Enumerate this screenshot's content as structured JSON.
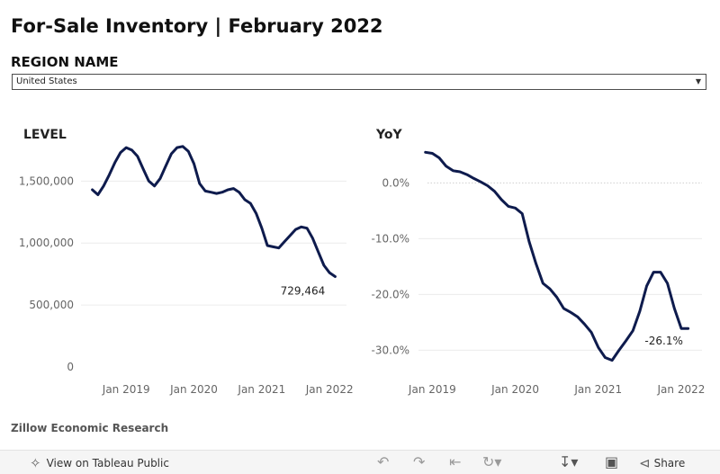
{
  "page": {
    "title": "For-Sale Inventory | February 2022",
    "region_label": "REGION NAME",
    "region_value": "United States",
    "source": "Zillow Economic Research"
  },
  "toolbar": {
    "view_label": "View on Tableau Public",
    "share_label": "Share",
    "icons": [
      "tableau-logo-icon",
      "undo-icon",
      "redo-icon",
      "revert-icon",
      "refresh-icon",
      "download-icon",
      "fullscreen-icon",
      "share-icon"
    ]
  },
  "colors": {
    "line": "#0e1b4d",
    "grid": "#ececec"
  },
  "chart_data": [
    {
      "type": "line",
      "title": "LEVEL",
      "x_ticks": [
        "Jan 2019",
        "Jan 2020",
        "Jan 2021",
        "Jan 2022"
      ],
      "y_ticks": [
        "0",
        "500,000",
        "1,000,000",
        "1,500,000"
      ],
      "ylim": [
        0,
        1800000
      ],
      "x": [
        "2018-07",
        "2018-08",
        "2018-09",
        "2018-10",
        "2018-11",
        "2018-12",
        "2019-01",
        "2019-02",
        "2019-03",
        "2019-04",
        "2019-05",
        "2019-06",
        "2019-07",
        "2019-08",
        "2019-09",
        "2019-10",
        "2019-11",
        "2019-12",
        "2020-01",
        "2020-02",
        "2020-03",
        "2020-04",
        "2020-05",
        "2020-06",
        "2020-07",
        "2020-08",
        "2020-09",
        "2020-10",
        "2020-11",
        "2020-12",
        "2021-01",
        "2021-02",
        "2021-03",
        "2021-04",
        "2021-05",
        "2021-06",
        "2021-07",
        "2021-08",
        "2021-09",
        "2021-10",
        "2021-11",
        "2021-12",
        "2022-01",
        "2022-02"
      ],
      "series": [
        {
          "values": [
            1430000,
            1390000,
            1460000,
            1550000,
            1650000,
            1730000,
            1770000,
            1750000,
            1700000,
            1600000,
            1500000,
            1460000,
            1520000,
            1620000,
            1720000,
            1770000,
            1780000,
            1740000,
            1640000,
            1480000,
            1420000,
            1410000,
            1400000,
            1410000,
            1430000,
            1440000,
            1410000,
            1350000,
            1320000,
            1240000,
            1120000,
            980000,
            970000,
            960000,
            1010000,
            1060000,
            1110000,
            1130000,
            1120000,
            1040000,
            930000,
            820000,
            760000,
            729464
          ]
        }
      ],
      "end_label": "729,464"
    },
    {
      "type": "line",
      "title": "YoY",
      "x_ticks": [
        "Jan 2019",
        "Jan 2020",
        "Jan 2021",
        "Jan 2022"
      ],
      "y_ticks": [
        "0.0%",
        "-10.0%",
        "-20.0%",
        "-30.0%"
      ],
      "ylim": [
        -33,
        7
      ],
      "x": [
        "2018-12",
        "2019-01",
        "2019-02",
        "2019-03",
        "2019-04",
        "2019-05",
        "2019-06",
        "2019-07",
        "2019-08",
        "2019-09",
        "2019-10",
        "2019-11",
        "2019-12",
        "2020-01",
        "2020-02",
        "2020-03",
        "2020-04",
        "2020-05",
        "2020-06",
        "2020-07",
        "2020-08",
        "2020-09",
        "2020-10",
        "2020-11",
        "2020-12",
        "2021-01",
        "2021-02",
        "2021-03",
        "2021-04",
        "2021-05",
        "2021-06",
        "2021-07",
        "2021-08",
        "2021-09",
        "2021-10",
        "2021-11",
        "2021-12",
        "2022-01",
        "2022-02"
      ],
      "series": [
        {
          "values": [
            5.5,
            5.3,
            4.5,
            3.0,
            2.2,
            2.0,
            1.5,
            0.8,
            0.2,
            -0.5,
            -1.5,
            -3.0,
            -4.2,
            -4.5,
            -5.5,
            -10.5,
            -14.5,
            -18.0,
            -19.0,
            -20.5,
            -22.5,
            -23.2,
            -24.0,
            -25.3,
            -26.8,
            -29.5,
            -31.3,
            -31.8,
            -30.0,
            -28.3,
            -26.5,
            -23.0,
            -18.5,
            -16.0,
            -16.0,
            -18.0,
            -22.5,
            -26.1,
            -26.1
          ]
        }
      ],
      "end_label": "-26.1%"
    }
  ]
}
